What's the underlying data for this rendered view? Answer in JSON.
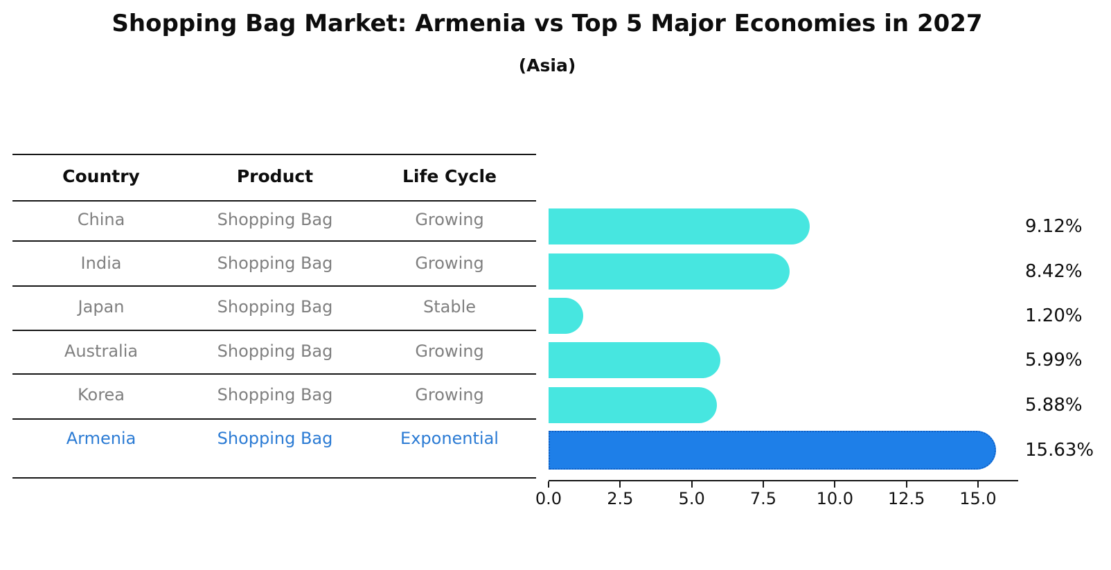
{
  "title": "Shopping Bag Market: Armenia vs Top 5 Major Economies in 2027",
  "subtitle": "(Asia)",
  "table": {
    "headers": [
      "Country",
      "Product",
      "Life Cycle"
    ],
    "rows": [
      {
        "country": "China",
        "product": "Shopping Bag",
        "life_cycle": "Growing",
        "highlight": false
      },
      {
        "country": "India",
        "product": "Shopping Bag",
        "life_cycle": "Growing",
        "highlight": false
      },
      {
        "country": "Japan",
        "product": "Shopping Bag",
        "life_cycle": "Stable",
        "highlight": false
      },
      {
        "country": "Australia",
        "product": "Shopping Bag",
        "life_cycle": "Growing",
        "highlight": false
      },
      {
        "country": "Korea",
        "product": "Shopping Bag",
        "life_cycle": "Growing",
        "highlight": false
      },
      {
        "country": "Armenia",
        "product": "Shopping Bag",
        "life_cycle": "Exponential",
        "highlight": true
      }
    ]
  },
  "chart_data": {
    "type": "bar",
    "orientation": "horizontal",
    "title": "Shopping Bag Market: Armenia vs Top 5 Major Economies in 2027",
    "subtitle": "(Asia)",
    "categories": [
      "China",
      "India",
      "Japan",
      "Australia",
      "Korea",
      "Armenia"
    ],
    "values": [
      9.12,
      8.42,
      1.2,
      5.99,
      5.88,
      15.63
    ],
    "value_labels": [
      "9.12%",
      "8.42%",
      "1.20%",
      "5.99%",
      "5.88%",
      "15.63%"
    ],
    "highlight_index": 5,
    "x_ticks": [
      0.0,
      2.5,
      5.0,
      7.5,
      10.0,
      12.5,
      15.0
    ],
    "x_tick_labels": [
      "0.0",
      "2.5",
      "5.0",
      "7.5",
      "10.0",
      "12.5",
      "15.0"
    ],
    "xlim": [
      0,
      16.4
    ],
    "grid": false,
    "legend": false,
    "colors": {
      "bar": "#47E6E0",
      "highlight_bar": "#1E7FE8",
      "highlight_edge": "#0F5FC4",
      "highlight_text": "#2B7BD4",
      "row_text": "#7F7F7F",
      "header_text": "#0D0D0D",
      "axis": "#131313"
    }
  }
}
